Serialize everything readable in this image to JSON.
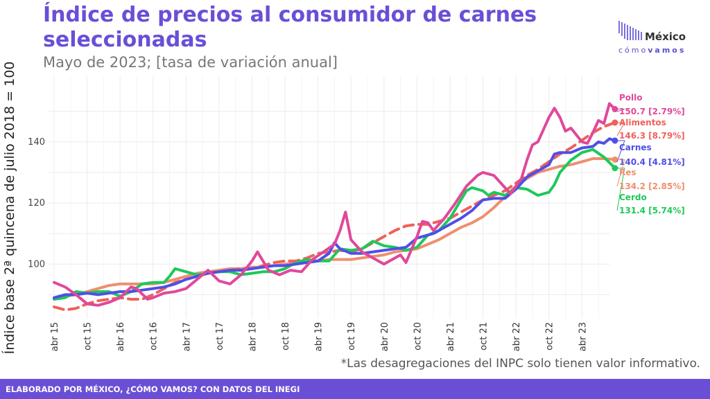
{
  "header": {
    "title": "Índice de precios al consumidor de carnes seleccionadas",
    "subtitle": "Mayo de 2023; [tasa de variación anual]"
  },
  "logo": {
    "brand_top": "México",
    "brand_bottom_a": "cómo",
    "brand_bottom_b": "vamos",
    "icon": "bar-waves-icon"
  },
  "footnote": "*Las desagregaciones del INPC solo tienen valor informativo.",
  "footer": {
    "text": "ELABORADO POR MÉXICO, ¿CÓMO VAMOS? CON DATOS DEL INEGI"
  },
  "colors": {
    "accent": "#6a4fd6",
    "Pollo": "#e0489a",
    "Alimentos": "#f0605a",
    "Carnes": "#4f4fe6",
    "Res": "#ee8f6e",
    "Cerdo": "#1ec85a"
  },
  "chart_data": {
    "type": "line",
    "title": "Índice de precios al consumidor de carnes seleccionadas",
    "ylabel": "Índice base 2ª quincena de julio 2018 = 100",
    "xlabel": "",
    "ylim": [
      80,
      160
    ],
    "yticks": [
      100,
      120,
      140
    ],
    "xticks": [
      "abr 15",
      "oct 15",
      "abr 16",
      "oct 16",
      "abr 17",
      "oct 17",
      "abr 18",
      "oct 18",
      "abr 19",
      "oct 19",
      "abr 20",
      "oct 20",
      "abr 21",
      "oct 21",
      "abr 22",
      "oct 22",
      "abr 23"
    ],
    "grid": true,
    "x_start": "2015-04",
    "x_end": "2023-05",
    "series": [
      {
        "name": "Pollo",
        "label": "Pollo",
        "value_label": "150.7 [2.79%]",
        "style": "solid",
        "points": [
          [
            0,
            94
          ],
          [
            2,
            92.5
          ],
          [
            4,
            90
          ],
          [
            6,
            87
          ],
          [
            8,
            86.5
          ],
          [
            10,
            87.5
          ],
          [
            12,
            89
          ],
          [
            14,
            92.5
          ],
          [
            15,
            92
          ],
          [
            17,
            88.5
          ],
          [
            18,
            89
          ],
          [
            20,
            90.5
          ],
          [
            22,
            91
          ],
          [
            24,
            92
          ],
          [
            26,
            95
          ],
          [
            28,
            98
          ],
          [
            30,
            94.5
          ],
          [
            32,
            93.5
          ],
          [
            34,
            96.5
          ],
          [
            36,
            101
          ],
          [
            37,
            104
          ],
          [
            39,
            98
          ],
          [
            41,
            96.5
          ],
          [
            43,
            98
          ],
          [
            45,
            97.5
          ],
          [
            47,
            101.5
          ],
          [
            49,
            104
          ],
          [
            51,
            106.5
          ],
          [
            52,
            111
          ],
          [
            53,
            117
          ],
          [
            54,
            108
          ],
          [
            56,
            104
          ],
          [
            58,
            102
          ],
          [
            60,
            100
          ],
          [
            62,
            102
          ],
          [
            63,
            103
          ],
          [
            64,
            100.5
          ],
          [
            66,
            109
          ],
          [
            67,
            114
          ],
          [
            68,
            113.5
          ],
          [
            69,
            111
          ],
          [
            71,
            115
          ],
          [
            73,
            120
          ],
          [
            75,
            125.5
          ],
          [
            77,
            129
          ],
          [
            78,
            130
          ],
          [
            80,
            129
          ],
          [
            82,
            125
          ],
          [
            83,
            123
          ],
          [
            85,
            128
          ],
          [
            86,
            134
          ],
          [
            87,
            139
          ],
          [
            88,
            140
          ],
          [
            89,
            144
          ],
          [
            90,
            148
          ],
          [
            91,
            151
          ],
          [
            92,
            148
          ],
          [
            93,
            143.5
          ],
          [
            94,
            144.5
          ],
          [
            96,
            140
          ],
          [
            97,
            139.5
          ],
          [
            98,
            143
          ],
          [
            99,
            147
          ],
          [
            100,
            146
          ],
          [
            101,
            152.5
          ],
          [
            102,
            150.7
          ]
        ]
      },
      {
        "name": "Alimentos",
        "label": "Alimentos",
        "value_label": "146.3 [8.79%]",
        "style": "dashed",
        "points": [
          [
            0,
            86
          ],
          [
            2,
            85
          ],
          [
            4,
            85.5
          ],
          [
            6,
            87
          ],
          [
            8,
            88
          ],
          [
            10,
            88.5
          ],
          [
            12,
            89
          ],
          [
            14,
            88.5
          ],
          [
            16,
            88.5
          ],
          [
            18,
            90
          ],
          [
            20,
            92
          ],
          [
            22,
            94
          ],
          [
            24,
            95
          ],
          [
            26,
            96
          ],
          [
            28,
            97
          ],
          [
            30,
            97.5
          ],
          [
            32,
            98
          ],
          [
            34,
            98.5
          ],
          [
            36,
            98.5
          ],
          [
            38,
            99.5
          ],
          [
            40,
            100.5
          ],
          [
            42,
            101
          ],
          [
            44,
            101
          ],
          [
            46,
            102
          ],
          [
            48,
            103.5
          ],
          [
            50,
            104
          ],
          [
            52,
            104.5
          ],
          [
            54,
            104
          ],
          [
            56,
            105
          ],
          [
            58,
            107
          ],
          [
            60,
            109
          ],
          [
            62,
            111
          ],
          [
            64,
            112.5
          ],
          [
            66,
            113
          ],
          [
            68,
            113
          ],
          [
            70,
            114
          ],
          [
            72,
            115
          ],
          [
            74,
            117
          ],
          [
            76,
            119
          ],
          [
            78,
            121
          ],
          [
            80,
            122.5
          ],
          [
            82,
            124
          ],
          [
            84,
            126.5
          ],
          [
            86,
            129
          ],
          [
            88,
            131
          ],
          [
            90,
            133.5
          ],
          [
            92,
            136
          ],
          [
            94,
            138
          ],
          [
            96,
            140.5
          ],
          [
            98,
            143
          ],
          [
            100,
            145
          ],
          [
            102,
            146.3
          ]
        ]
      },
      {
        "name": "Carnes",
        "label": "Carnes",
        "value_label": "140.4 [4.81%]",
        "style": "solid",
        "points": [
          [
            0,
            89
          ],
          [
            2,
            90
          ],
          [
            4,
            90
          ],
          [
            6,
            90.5
          ],
          [
            8,
            90
          ],
          [
            10,
            90.5
          ],
          [
            12,
            91
          ],
          [
            14,
            91
          ],
          [
            16,
            91.5
          ],
          [
            18,
            92
          ],
          [
            20,
            92.5
          ],
          [
            22,
            93.5
          ],
          [
            24,
            95
          ],
          [
            26,
            96
          ],
          [
            28,
            97
          ],
          [
            30,
            97.5
          ],
          [
            32,
            98
          ],
          [
            34,
            98
          ],
          [
            36,
            98.5
          ],
          [
            38,
            99
          ],
          [
            40,
            99.5
          ],
          [
            42,
            99.5
          ],
          [
            44,
            100
          ],
          [
            46,
            100.5
          ],
          [
            48,
            101
          ],
          [
            50,
            103.5
          ],
          [
            51,
            107
          ],
          [
            52,
            105
          ],
          [
            54,
            103.5
          ],
          [
            56,
            103.5
          ],
          [
            58,
            104
          ],
          [
            60,
            104.5
          ],
          [
            62,
            105
          ],
          [
            64,
            105.5
          ],
          [
            66,
            108.5
          ],
          [
            68,
            109.5
          ],
          [
            69,
            110
          ],
          [
            70,
            111
          ],
          [
            72,
            113
          ],
          [
            74,
            115
          ],
          [
            76,
            117.5
          ],
          [
            78,
            121
          ],
          [
            80,
            121.5
          ],
          [
            82,
            121.5
          ],
          [
            84,
            124.5
          ],
          [
            86,
            128.5
          ],
          [
            88,
            130.5
          ],
          [
            90,
            132.5
          ],
          [
            91,
            136
          ],
          [
            92,
            136.5
          ],
          [
            94,
            136.5
          ],
          [
            96,
            138
          ],
          [
            98,
            138.5
          ],
          [
            99,
            140
          ],
          [
            100,
            139.5
          ],
          [
            101,
            141
          ],
          [
            102,
            140.4
          ]
        ]
      },
      {
        "name": "Res",
        "label": "Res",
        "value_label": "134.2 [2.85%]",
        "style": "solid",
        "points": [
          [
            0,
            89
          ],
          [
            2,
            89.5
          ],
          [
            4,
            90
          ],
          [
            6,
            91
          ],
          [
            8,
            92
          ],
          [
            10,
            93
          ],
          [
            12,
            93.5
          ],
          [
            14,
            93.5
          ],
          [
            16,
            93.5
          ],
          [
            18,
            93.5
          ],
          [
            20,
            94
          ],
          [
            22,
            95
          ],
          [
            24,
            96
          ],
          [
            26,
            97
          ],
          [
            28,
            97.5
          ],
          [
            30,
            98
          ],
          [
            32,
            98.5
          ],
          [
            34,
            98.5
          ],
          [
            36,
            99
          ],
          [
            38,
            99
          ],
          [
            40,
            99.5
          ],
          [
            42,
            100
          ],
          [
            44,
            100.5
          ],
          [
            46,
            100.5
          ],
          [
            48,
            101
          ],
          [
            50,
            101.5
          ],
          [
            52,
            101.5
          ],
          [
            54,
            101.5
          ],
          [
            56,
            102
          ],
          [
            58,
            102.5
          ],
          [
            60,
            103
          ],
          [
            62,
            104
          ],
          [
            64,
            104.5
          ],
          [
            66,
            105
          ],
          [
            68,
            106.5
          ],
          [
            70,
            108
          ],
          [
            72,
            110
          ],
          [
            74,
            112
          ],
          [
            76,
            113.5
          ],
          [
            78,
            115.5
          ],
          [
            80,
            118.5
          ],
          [
            82,
            122
          ],
          [
            84,
            125.5
          ],
          [
            86,
            128
          ],
          [
            88,
            130
          ],
          [
            90,
            131
          ],
          [
            92,
            132
          ],
          [
            94,
            132.5
          ],
          [
            96,
            133.5
          ],
          [
            98,
            134.5
          ],
          [
            100,
            134.5
          ],
          [
            102,
            134.2
          ]
        ]
      },
      {
        "name": "Cerdo",
        "label": "Cerdo",
        "value_label": "131.4 [5.74%]",
        "style": "solid",
        "points": [
          [
            0,
            88.5
          ],
          [
            2,
            89
          ],
          [
            4,
            91
          ],
          [
            6,
            90.5
          ],
          [
            8,
            91
          ],
          [
            10,
            91
          ],
          [
            12,
            89.5
          ],
          [
            14,
            91
          ],
          [
            16,
            93.5
          ],
          [
            18,
            94
          ],
          [
            20,
            94
          ],
          [
            21,
            96
          ],
          [
            22,
            98.5
          ],
          [
            24,
            97.5
          ],
          [
            26,
            96.5
          ],
          [
            28,
            97
          ],
          [
            30,
            97.5
          ],
          [
            32,
            97.5
          ],
          [
            34,
            96.5
          ],
          [
            36,
            97
          ],
          [
            38,
            97.5
          ],
          [
            40,
            97.5
          ],
          [
            42,
            98.5
          ],
          [
            44,
            100.5
          ],
          [
            46,
            101.5
          ],
          [
            48,
            101
          ],
          [
            50,
            101
          ],
          [
            52,
            105
          ],
          [
            54,
            104.5
          ],
          [
            56,
            105
          ],
          [
            58,
            107.5
          ],
          [
            60,
            106
          ],
          [
            62,
            105.5
          ],
          [
            64,
            104.5
          ],
          [
            66,
            105.5
          ],
          [
            68,
            109.5
          ],
          [
            70,
            111
          ],
          [
            72,
            115
          ],
          [
            74,
            121
          ],
          [
            75,
            124
          ],
          [
            76,
            125
          ],
          [
            78,
            124
          ],
          [
            79,
            122.5
          ],
          [
            80,
            123.5
          ],
          [
            82,
            122.5
          ],
          [
            84,
            125
          ],
          [
            86,
            124.5
          ],
          [
            88,
            122.5
          ],
          [
            90,
            123.5
          ],
          [
            91,
            126
          ],
          [
            92,
            130
          ],
          [
            94,
            134
          ],
          [
            96,
            136.5
          ],
          [
            98,
            137.5
          ],
          [
            100,
            135
          ],
          [
            102,
            131.4
          ]
        ]
      }
    ]
  }
}
